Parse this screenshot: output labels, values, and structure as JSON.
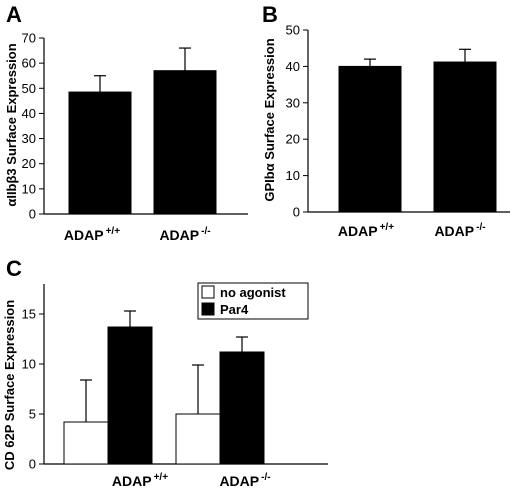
{
  "chart_data": [
    {
      "type": "bar",
      "panel_label": "A",
      "ylabel": "αIIbβ3 Surface Expression",
      "ylim": [
        0,
        70
      ],
      "yticks": [
        0,
        10,
        20,
        30,
        40,
        50,
        60,
        70
      ],
      "categories": [
        {
          "base": "ADAP",
          "sup": "+/+"
        },
        {
          "base": "ADAP",
          "sup": "-/-"
        }
      ],
      "series": [
        {
          "values": [
            48.5,
            57
          ],
          "errors": [
            6.5,
            9
          ],
          "color": "#000000"
        }
      ]
    },
    {
      "type": "bar",
      "panel_label": "B",
      "ylabel": "GPIbα Surface Expression",
      "ylim": [
        0,
        50
      ],
      "yticks": [
        0,
        10,
        20,
        30,
        40,
        50
      ],
      "categories": [
        {
          "base": "ADAP",
          "sup": "+/+"
        },
        {
          "base": "ADAP",
          "sup": "-/-"
        }
      ],
      "series": [
        {
          "values": [
            40,
            41.2
          ],
          "errors": [
            2,
            3.5
          ],
          "color": "#000000"
        }
      ]
    },
    {
      "type": "bar",
      "panel_label": "C",
      "ylabel": "CD 62P Surface Expression",
      "ylim": [
        0,
        18
      ],
      "yticks": [
        0,
        5,
        10,
        15
      ],
      "legend_position": "top-right",
      "categories": [
        {
          "base": "ADAP",
          "sup": "+/+"
        },
        {
          "base": "ADAP",
          "sup": "-/-"
        }
      ],
      "series": [
        {
          "name": "no agonist",
          "values": [
            4.2,
            5.0
          ],
          "errors": [
            4.2,
            4.9
          ],
          "color": "#ffffff"
        },
        {
          "name": "Par4",
          "values": [
            13.7,
            11.2
          ],
          "errors": [
            1.6,
            1.5
          ],
          "color": "#000000"
        }
      ]
    }
  ]
}
